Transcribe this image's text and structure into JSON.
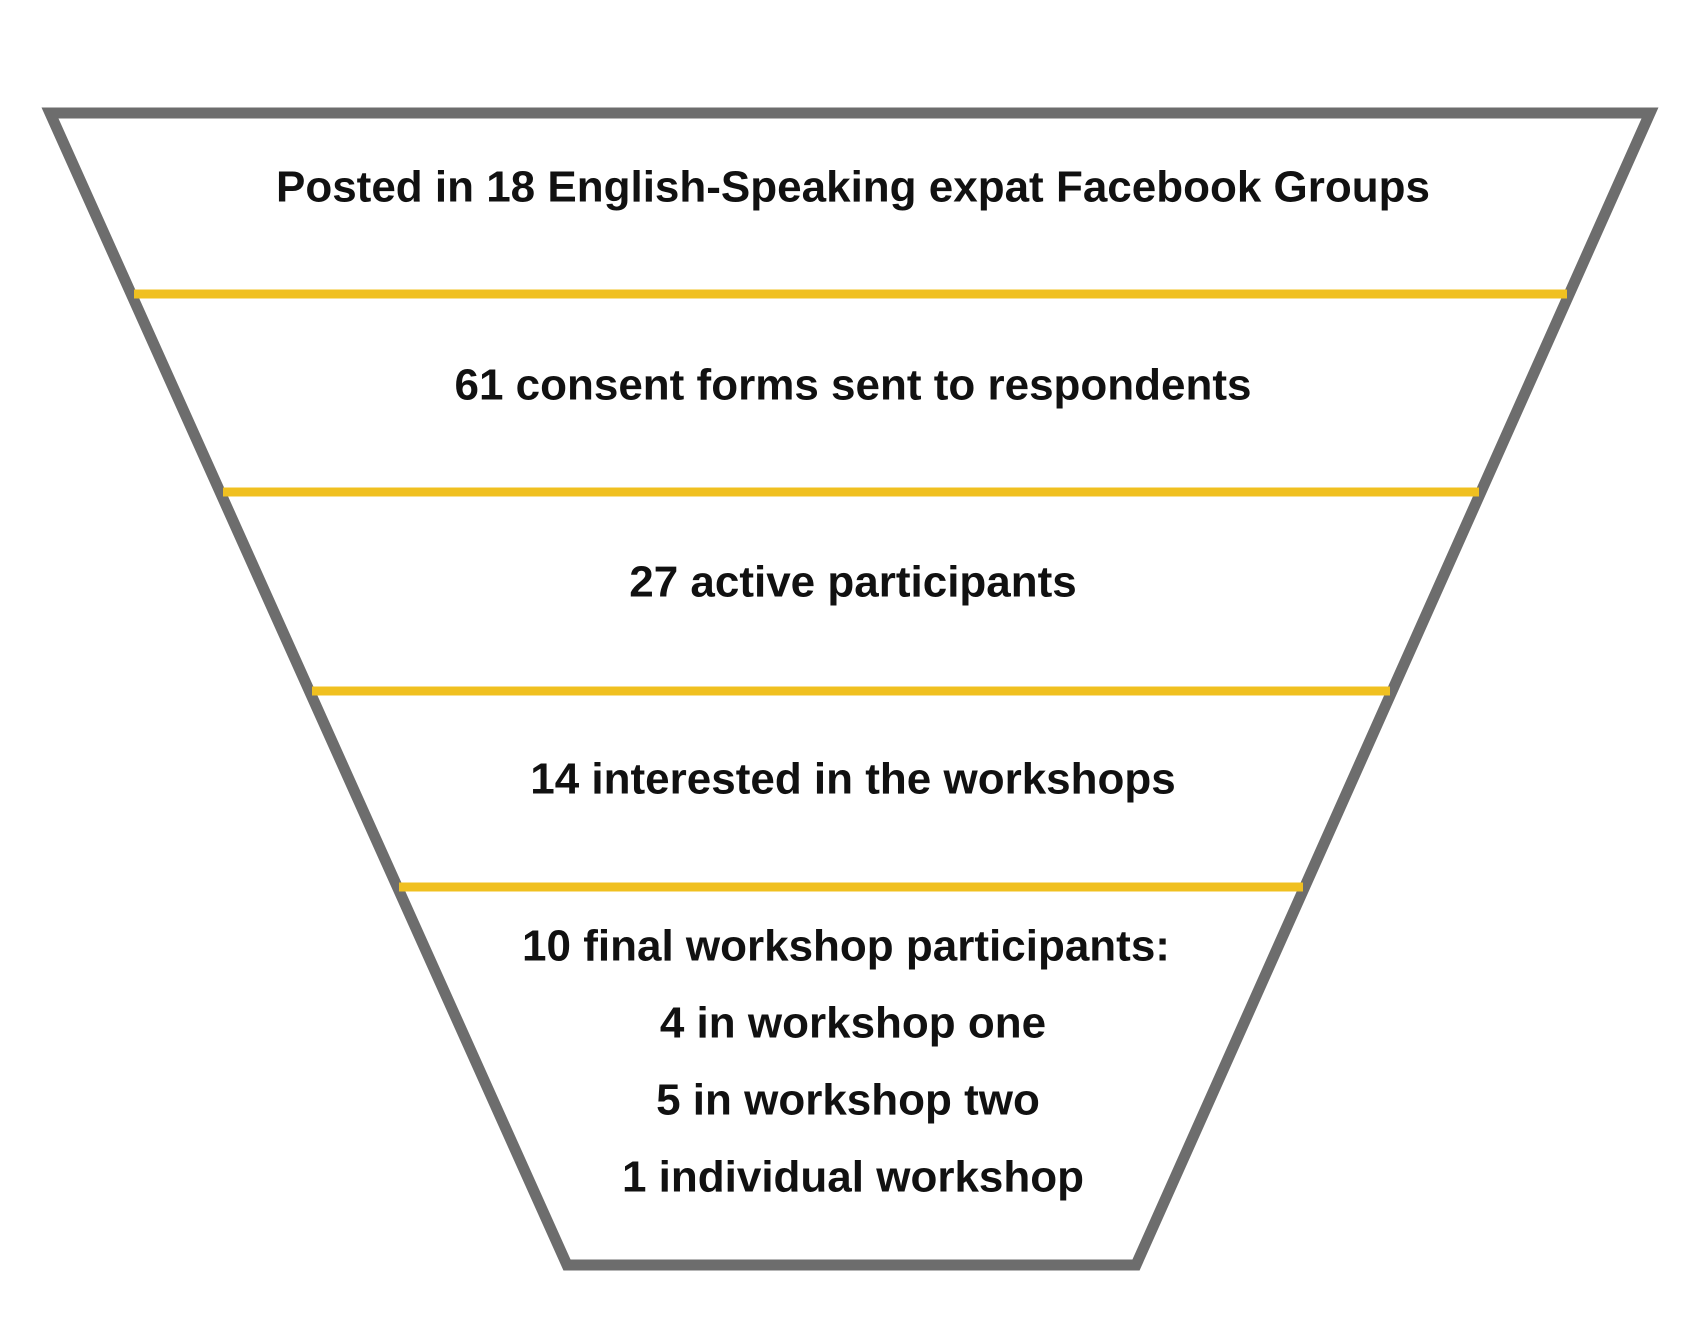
{
  "funnel": {
    "colors": {
      "outline": "#6d6d6d",
      "divider": "#f0c020",
      "text": "#111111",
      "background": "#ffffff"
    },
    "stages": [
      {
        "lines": [
          "Posted in 18 English-Speaking expat Facebook Groups"
        ]
      },
      {
        "lines": [
          "61 consent forms sent to respondents"
        ]
      },
      {
        "lines": [
          "27 active participants"
        ]
      },
      {
        "lines": [
          "14 interested in the workshops"
        ]
      },
      {
        "lines": [
          "10 final workshop participants:",
          "4 in workshop one",
          "5 in workshop two",
          "1 individual workshop"
        ]
      }
    ]
  }
}
